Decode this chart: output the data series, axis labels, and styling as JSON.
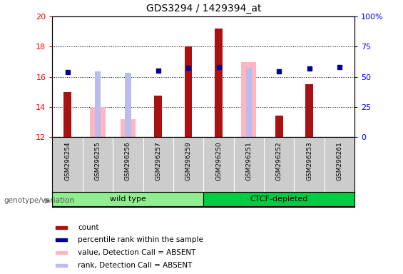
{
  "title": "GDS3294 / 1429394_at",
  "samples": [
    "GSM296254",
    "GSM296255",
    "GSM296256",
    "GSM296257",
    "GSM296259",
    "GSM296250",
    "GSM296251",
    "GSM296252",
    "GSM296253",
    "GSM296261"
  ],
  "count_values": [
    15.0,
    null,
    null,
    14.75,
    18.0,
    19.2,
    null,
    13.4,
    15.5,
    null
  ],
  "absent_value_values": [
    null,
    14.0,
    13.2,
    null,
    null,
    null,
    16.95,
    null,
    null,
    null
  ],
  "absent_rank_values": [
    null,
    16.35,
    16.25,
    null,
    null,
    null,
    16.6,
    null,
    null,
    null
  ],
  "percentile_rank_values": [
    16.3,
    null,
    null,
    16.4,
    16.6,
    16.65,
    null,
    16.35,
    16.55,
    16.65
  ],
  "ylim": [
    12,
    20
  ],
  "yticks": [
    12,
    14,
    16,
    18,
    20
  ],
  "right_yticks": [
    0,
    25,
    50,
    75,
    100
  ],
  "right_ylim": [
    0,
    100
  ],
  "groups": [
    {
      "label": "wild type",
      "start": 0,
      "end": 5,
      "color": "#90EE90"
    },
    {
      "label": "CTCF-depleted",
      "start": 5,
      "end": 10,
      "color": "#00CC44"
    }
  ],
  "group_label": "genotype/variation",
  "bar_color": "#AA1111",
  "absent_value_color": "#FFB6C1",
  "absent_rank_color": "#BBBBEE",
  "percentile_color": "#000099",
  "bar_width": 0.5,
  "legend_items": [
    {
      "label": "count",
      "color": "#AA1111"
    },
    {
      "label": "percentile rank within the sample",
      "color": "#000099"
    },
    {
      "label": "value, Detection Call = ABSENT",
      "color": "#FFB6C1"
    },
    {
      "label": "rank, Detection Call = ABSENT",
      "color": "#BBBBEE"
    }
  ]
}
